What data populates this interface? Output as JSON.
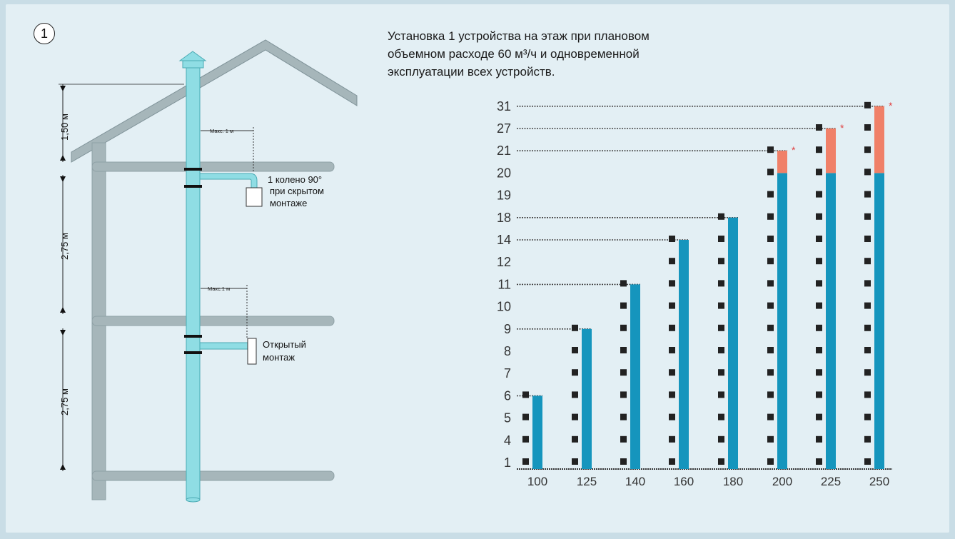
{
  "figure_number": "1",
  "description_lines": [
    "Установка 1 устройства на этаж при плановом",
    "объемном расходе 60 м³/ч и одновременной",
    "эксплуатации всех устройств."
  ],
  "building": {
    "dimensions": [
      "1,50 м",
      "2,75 м",
      "2,75 м"
    ],
    "max_distance_labels": [
      "Макс. 1 м",
      "Макс.1 м"
    ],
    "connection_concealed": [
      "1 колено 90°",
      "при скрытом",
      "монтаже"
    ],
    "connection_open": [
      "Открытый",
      "монтаж"
    ]
  },
  "colors": {
    "panel_background": "#e3eff4",
    "pipe": "#8fdde4",
    "building_wall": "#a6b6ba",
    "column_base": "#1595bd",
    "column_extension": "#f08068",
    "device": "#222222",
    "asterisk": "#e04040"
  },
  "chart_data": {
    "type": "bar",
    "x_tick_labels": [
      "100",
      "125",
      "140",
      "160",
      "180",
      "200",
      "225",
      "250"
    ],
    "y_tick_labels": [
      "1",
      "4",
      "5",
      "6",
      "7",
      "8",
      "9",
      "10",
      "11",
      "12",
      "14",
      "18",
      "19",
      "20",
      "21",
      "27",
      "31"
    ],
    "series": [
      {
        "values": [
          6,
          9,
          11,
          14,
          18,
          20,
          20,
          20
        ]
      },
      {
        "values": [
          0,
          0,
          0,
          0,
          0,
          21,
          27,
          31
        ]
      }
    ],
    "annotations": [
      "*",
      "*",
      "*"
    ],
    "grid": false
  }
}
